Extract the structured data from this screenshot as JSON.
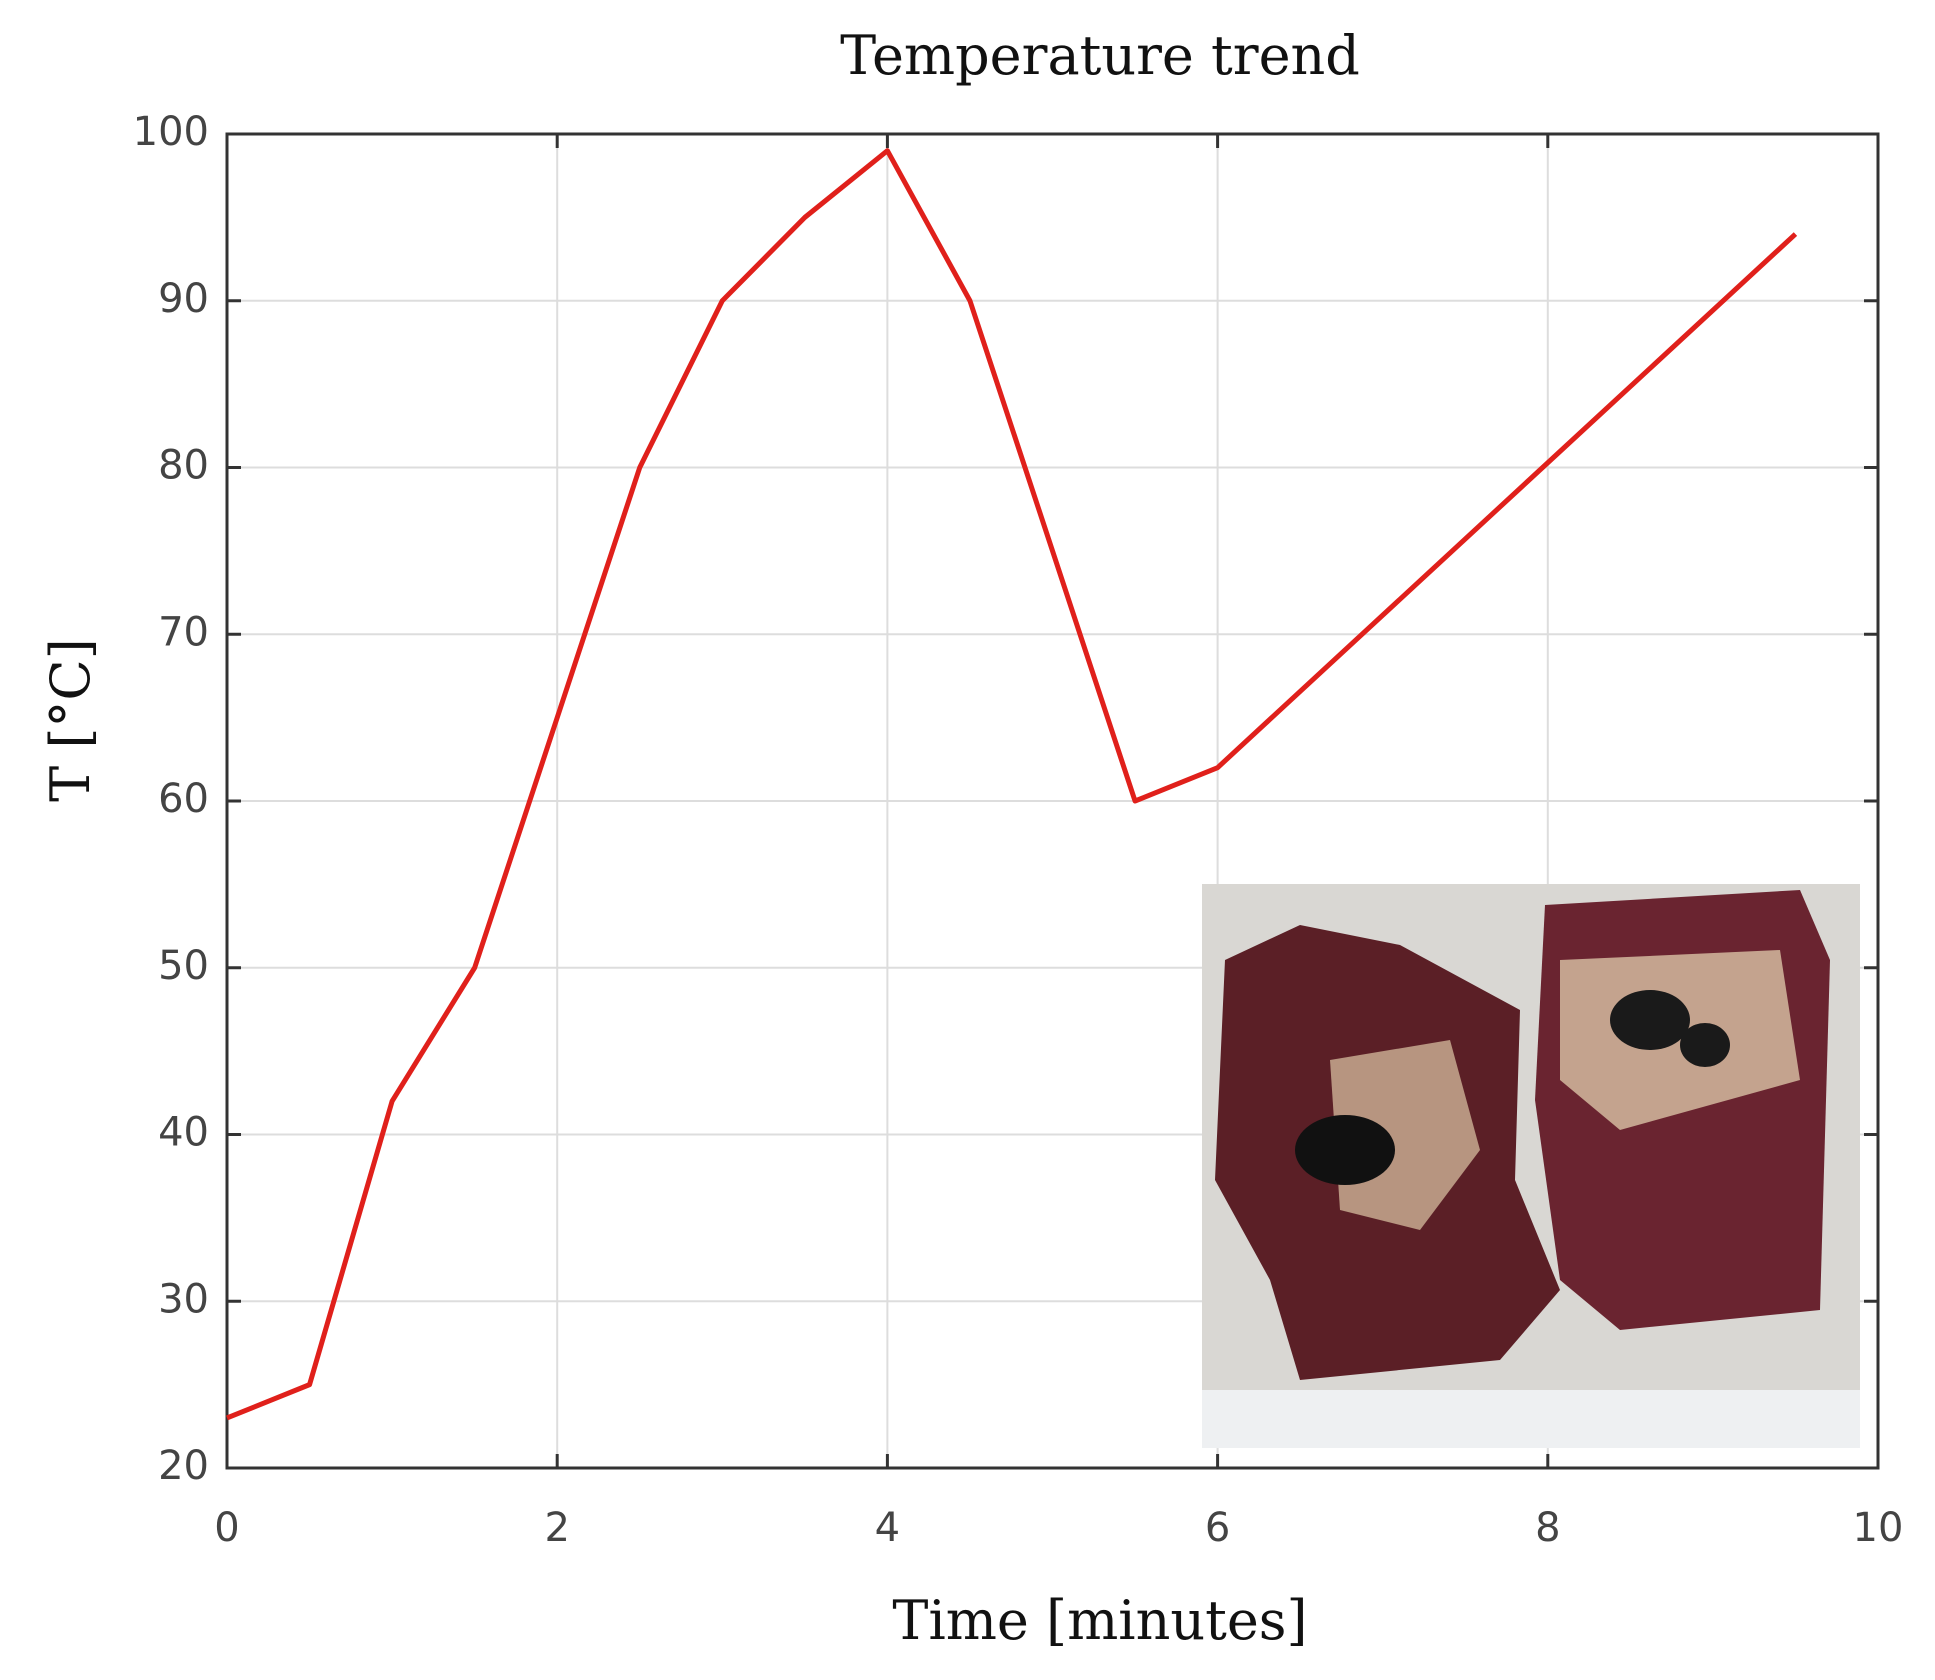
{
  "chart_data": {
    "type": "line",
    "title": "Temperature trend",
    "xlabel": "Time [minutes]",
    "ylabel": "T [°C]",
    "x": [
      0,
      0.5,
      1,
      1.5,
      2,
      2.5,
      3,
      3.5,
      4,
      4.5,
      5.5,
      6,
      9.5
    ],
    "series": [
      {
        "name": "T",
        "color": "#e0201b",
        "values": [
          23,
          25,
          42,
          50,
          65,
          80,
          90,
          95,
          99,
          90,
          60,
          62,
          94
        ]
      }
    ],
    "xlim": [
      0,
      10
    ],
    "xticks": [
      0,
      2,
      4,
      6,
      8,
      10
    ],
    "ylim": [
      20,
      100
    ],
    "yticks": [
      20,
      30,
      40,
      50,
      60,
      70,
      80,
      90,
      100
    ],
    "grid": true
  }
}
